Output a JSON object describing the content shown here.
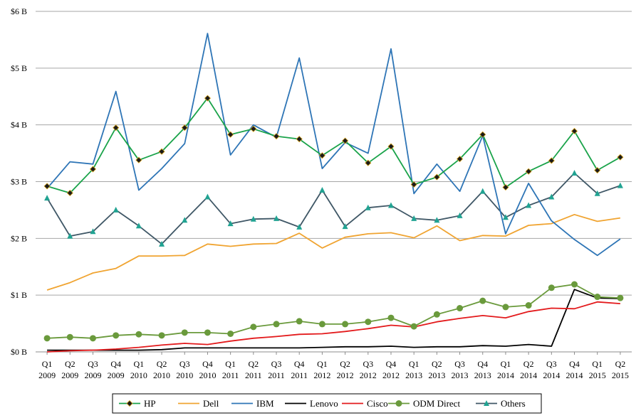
{
  "chart_data": {
    "type": "line",
    "title": "",
    "xlabel": "",
    "ylabel": "",
    "ylim": [
      0,
      6
    ],
    "y_ticks": [
      {
        "value": 0,
        "label": "$0 B"
      },
      {
        "value": 1,
        "label": "$1 B"
      },
      {
        "value": 2,
        "label": "$2 B"
      },
      {
        "value": 3,
        "label": "$3 B"
      },
      {
        "value": 4,
        "label": "$4 B"
      },
      {
        "value": 5,
        "label": "$5 B"
      },
      {
        "value": 6,
        "label": "$6 B"
      }
    ],
    "grid": "horizontal",
    "legend_position": "bottom",
    "categories": [
      [
        "Q1",
        "2009"
      ],
      [
        "Q2",
        "2009"
      ],
      [
        "Q3",
        "2009"
      ],
      [
        "Q4",
        "2009"
      ],
      [
        "Q1",
        "2010"
      ],
      [
        "Q2",
        "2010"
      ],
      [
        "Q3",
        "2010"
      ],
      [
        "Q4",
        "2010"
      ],
      [
        "Q1",
        "2011"
      ],
      [
        "Q2",
        "2011"
      ],
      [
        "Q3",
        "2011"
      ],
      [
        "Q4",
        "2011"
      ],
      [
        "Q1",
        "2012"
      ],
      [
        "Q2",
        "2012"
      ],
      [
        "Q3",
        "2012"
      ],
      [
        "Q4",
        "2012"
      ],
      [
        "Q1",
        "2013"
      ],
      [
        "Q2",
        "2013"
      ],
      [
        "Q3",
        "2013"
      ],
      [
        "Q4",
        "2013"
      ],
      [
        "Q1",
        "2014"
      ],
      [
        "Q2",
        "2014"
      ],
      [
        "Q3",
        "2014"
      ],
      [
        "Q4",
        "2014"
      ],
      [
        "Q1",
        "2015"
      ],
      [
        "Q2",
        "2015"
      ]
    ],
    "series": [
      {
        "name": "HP",
        "color": "#1aa34a",
        "marker": "diamond",
        "marker_color": "#1a1a1a",
        "values": [
          2.92,
          2.8,
          3.22,
          3.95,
          3.38,
          3.53,
          3.95,
          4.47,
          3.83,
          3.93,
          3.8,
          3.75,
          3.46,
          3.72,
          3.33,
          3.62,
          2.95,
          3.08,
          3.4,
          3.83,
          2.9,
          3.18,
          3.37,
          3.89,
          3.2,
          3.43
        ]
      },
      {
        "name": "Dell",
        "color": "#f0a431",
        "marker": "none",
        "values": [
          1.09,
          1.22,
          1.39,
          1.47,
          1.69,
          1.69,
          1.7,
          1.9,
          1.86,
          1.9,
          1.91,
          2.09,
          1.83,
          2.02,
          2.08,
          2.1,
          2.01,
          2.22,
          1.96,
          2.05,
          2.04,
          2.23,
          2.26,
          2.42,
          2.3,
          2.36
        ]
      },
      {
        "name": "IBM",
        "color": "#2e75b6",
        "marker": "none",
        "values": [
          2.88,
          3.35,
          3.31,
          4.59,
          2.85,
          3.23,
          3.67,
          5.61,
          3.47,
          4.0,
          3.78,
          5.18,
          3.23,
          3.69,
          3.5,
          5.34,
          2.79,
          3.31,
          2.83,
          3.81,
          2.08,
          2.97,
          2.31,
          1.98,
          1.7,
          1.99
        ]
      },
      {
        "name": "Lenovo",
        "color": "#000000",
        "marker": "none",
        "values": [
          0.03,
          0.03,
          0.03,
          0.03,
          0.03,
          0.04,
          0.07,
          0.07,
          0.07,
          0.07,
          0.07,
          0.07,
          0.08,
          0.09,
          0.09,
          0.1,
          0.08,
          0.09,
          0.09,
          0.11,
          0.1,
          0.13,
          0.1,
          1.1,
          0.95,
          0.94
        ]
      },
      {
        "name": "Cisco",
        "color": "#e31a1c",
        "marker": "none",
        "values": [
          0.0,
          0.02,
          0.03,
          0.05,
          0.08,
          0.12,
          0.15,
          0.13,
          0.19,
          0.24,
          0.27,
          0.31,
          0.32,
          0.36,
          0.41,
          0.47,
          0.44,
          0.53,
          0.59,
          0.64,
          0.6,
          0.71,
          0.77,
          0.76,
          0.88,
          0.85
        ]
      },
      {
        "name": "ODM Direct",
        "color": "#6a9a3c",
        "marker": "circle",
        "marker_color": "#6a9a3c",
        "values": [
          0.24,
          0.26,
          0.24,
          0.29,
          0.31,
          0.29,
          0.34,
          0.34,
          0.32,
          0.44,
          0.49,
          0.54,
          0.49,
          0.49,
          0.53,
          0.6,
          0.45,
          0.66,
          0.77,
          0.9,
          0.79,
          0.82,
          1.13,
          1.19,
          0.97,
          0.95
        ]
      },
      {
        "name": "Others",
        "color": "#3f5766",
        "marker": "triangle",
        "marker_color": "#21a392",
        "values": [
          2.71,
          2.04,
          2.12,
          2.5,
          2.22,
          1.9,
          2.32,
          2.73,
          2.26,
          2.34,
          2.35,
          2.2,
          2.85,
          2.21,
          2.54,
          2.58,
          2.35,
          2.32,
          2.4,
          2.83,
          2.37,
          2.58,
          2.73,
          3.15,
          2.79,
          2.93
        ]
      }
    ]
  }
}
